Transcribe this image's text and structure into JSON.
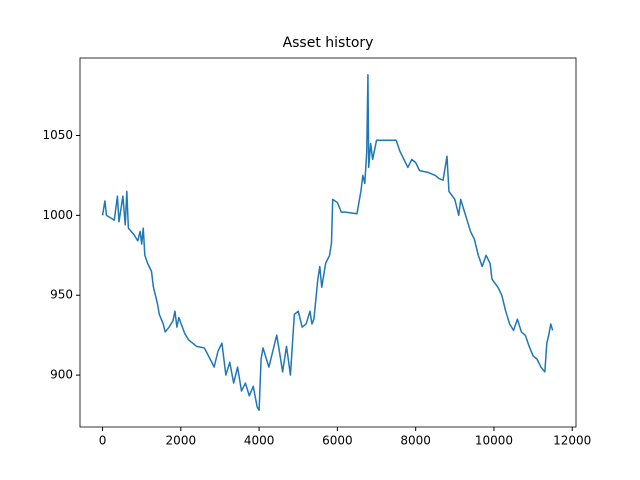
{
  "chart_data": {
    "type": "line",
    "title": "Asset history",
    "x": [
      0,
      60,
      100,
      300,
      380,
      420,
      520,
      580,
      620,
      660,
      800,
      900,
      960,
      1000,
      1040,
      1080,
      1150,
      1250,
      1300,
      1400,
      1450,
      1550,
      1600,
      1700,
      1800,
      1850,
      1900,
      1950,
      2100,
      2200,
      2400,
      2600,
      2750,
      2850,
      2950,
      3050,
      3150,
      3250,
      3350,
      3450,
      3550,
      3650,
      3750,
      3850,
      3950,
      4000,
      4050,
      4100,
      4250,
      4350,
      4450,
      4550,
      4600,
      4700,
      4800,
      4900,
      5000,
      5100,
      5200,
      5300,
      5350,
      5400,
      5500,
      5550,
      5600,
      5700,
      5800,
      5850,
      5880,
      6000,
      6100,
      6200,
      6500,
      6600,
      6650,
      6700,
      6750,
      6780,
      6800,
      6850,
      6900,
      7000,
      7200,
      7500,
      7600,
      7700,
      7800,
      7900,
      8000,
      8100,
      8300,
      8500,
      8600,
      8700,
      8800,
      8850,
      9000,
      9100,
      9150,
      9300,
      9400,
      9500,
      9600,
      9700,
      9800,
      9900,
      9950,
      10100,
      10200,
      10300,
      10400,
      10500,
      10600,
      10700,
      10800,
      10900,
      11000,
      11100,
      11200,
      11300,
      11350,
      11400,
      11450,
      11500
    ],
    "series": [
      {
        "color": "#1f77b4",
        "values": [
          1000,
          1009,
          1000,
          997,
          1012,
          996,
          1012,
          994,
          1015,
          992,
          988,
          984,
          990,
          982,
          992,
          975,
          970,
          965,
          955,
          945,
          938,
          932,
          927,
          930,
          934,
          940,
          930,
          936,
          926,
          922,
          918,
          917,
          910,
          905,
          915,
          920,
          900,
          908,
          895,
          905,
          890,
          895,
          887,
          893,
          880,
          878,
          910,
          917,
          905,
          915,
          925,
          910,
          902,
          918,
          900,
          938,
          940,
          930,
          932,
          940,
          932,
          935,
          960,
          968,
          955,
          970,
          975,
          983,
          1010,
          1008,
          1002,
          1002,
          1001,
          1015,
          1025,
          1020,
          1040,
          1088,
          1030,
          1045,
          1035,
          1047,
          1047,
          1047,
          1040,
          1035,
          1030,
          1035,
          1033,
          1028,
          1027,
          1025,
          1023,
          1022,
          1037,
          1015,
          1010,
          1000,
          1010,
          998,
          990,
          985,
          975,
          968,
          975,
          970,
          960,
          955,
          950,
          940,
          932,
          928,
          935,
          927,
          925,
          918,
          912,
          910,
          905,
          902,
          920,
          925,
          932,
          928
        ]
      }
    ],
    "xlim": [
      -576,
      12096
    ],
    "xticks": [
      0,
      2000,
      4000,
      6000,
      8000,
      10000,
      12000
    ],
    "ylim": [
      867.5,
      1098.5
    ],
    "yticks": [
      900,
      950,
      1000,
      1050
    ]
  }
}
